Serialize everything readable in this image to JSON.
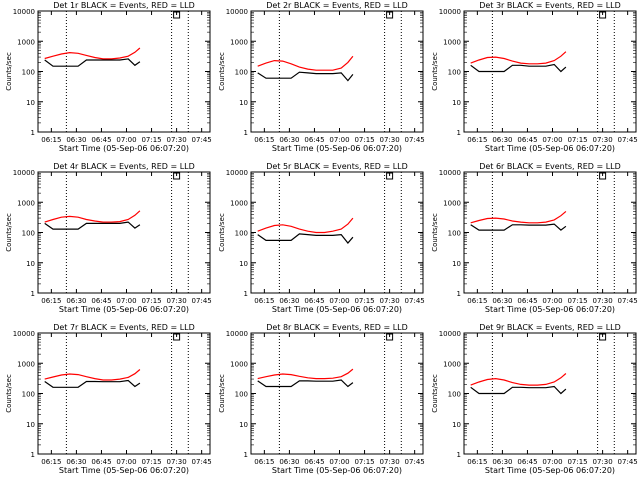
{
  "shared": {
    "xlabel": "Start Time (05-Sep-06 06:07:20)",
    "ylabel": "Counts/sec",
    "x_tick_labels": [
      "06:15",
      "06:30",
      "06:45",
      "07:00",
      "07:15",
      "07:30",
      "07:45"
    ],
    "y_tick_labels": [
      "1",
      "10",
      "100",
      "1000",
      "10000"
    ],
    "colors": {
      "events": "#000000",
      "lld": "#ff0000",
      "axes": "#000000"
    }
  },
  "chart_data": [
    {
      "type": "line",
      "title": "Det 1r BLACK = Events, RED = LLD",
      "x": [
        "06:11",
        "06:16",
        "06:21",
        "06:26",
        "06:31",
        "06:36",
        "06:41",
        "06:46",
        "06:51",
        "06:56",
        "07:01",
        "07:05",
        "07:08"
      ],
      "series": [
        {
          "values": [
            270,
            320,
            380,
            420,
            400,
            340,
            290,
            260,
            260,
            280,
            320,
            430,
            600
          ]
        },
        {
          "values": [
            240,
            150,
            150,
            150,
            150,
            240,
            240,
            240,
            240,
            240,
            260,
            160,
            210
          ]
        }
      ],
      "ylim": [
        1,
        10000
      ],
      "yscale": "log",
      "vlines": [
        "06:24",
        "07:27",
        "07:37"
      ],
      "marker_x": "07:30",
      "xlabel": "Start Time (05-Sep-06 06:07:20)",
      "ylabel": "Counts/sec"
    },
    {
      "type": "line",
      "title": "Det 2r BLACK = Events, RED = LLD",
      "x": [
        "06:11",
        "06:16",
        "06:21",
        "06:26",
        "06:31",
        "06:36",
        "06:41",
        "06:46",
        "06:51",
        "06:56",
        "07:01",
        "07:05",
        "07:08"
      ],
      "series": [
        {
          "values": [
            150,
            190,
            230,
            220,
            180,
            140,
            120,
            110,
            110,
            110,
            130,
            200,
            320
          ]
        },
        {
          "values": [
            90,
            60,
            60,
            60,
            60,
            95,
            90,
            85,
            85,
            85,
            90,
            50,
            80
          ]
        }
      ],
      "ylim": [
        1,
        10000
      ],
      "yscale": "log",
      "vlines": [
        "06:24",
        "07:27",
        "07:37"
      ],
      "marker_x": "07:30",
      "xlabel": "Start Time (05-Sep-06 06:07:20)",
      "ylabel": "Counts/sec"
    },
    {
      "type": "line",
      "title": "Det 3r BLACK = Events, RED = LLD",
      "x": [
        "06:11",
        "06:16",
        "06:21",
        "06:26",
        "06:31",
        "06:36",
        "06:41",
        "06:46",
        "06:51",
        "06:56",
        "07:01",
        "07:05",
        "07:08"
      ],
      "series": [
        {
          "values": [
            190,
            240,
            290,
            300,
            270,
            220,
            190,
            180,
            180,
            190,
            230,
            320,
            450
          ]
        },
        {
          "values": [
            160,
            100,
            100,
            100,
            100,
            160,
            160,
            150,
            150,
            150,
            170,
            100,
            140
          ]
        }
      ],
      "ylim": [
        1,
        10000
      ],
      "yscale": "log",
      "vlines": [
        "06:24",
        "07:27",
        "07:37"
      ],
      "marker_x": "07:30",
      "xlabel": "Start Time (05-Sep-06 06:07:20)",
      "ylabel": "Counts/sec"
    },
    {
      "type": "line",
      "title": "Det 4r BLACK = Events, RED = LLD",
      "x": [
        "06:11",
        "06:16",
        "06:21",
        "06:26",
        "06:31",
        "06:36",
        "06:41",
        "06:46",
        "06:51",
        "06:56",
        "07:01",
        "07:05",
        "07:08"
      ],
      "series": [
        {
          "values": [
            220,
            270,
            320,
            340,
            320,
            270,
            240,
            220,
            220,
            230,
            270,
            370,
            520
          ]
        },
        {
          "values": [
            200,
            130,
            130,
            130,
            130,
            200,
            200,
            200,
            200,
            200,
            220,
            140,
            180
          ]
        }
      ],
      "ylim": [
        1,
        10000
      ],
      "yscale": "log",
      "vlines": [
        "06:24",
        "07:27",
        "07:37"
      ],
      "marker_x": "07:30",
      "xlabel": "Start Time (05-Sep-06 06:07:20)",
      "ylabel": "Counts/sec"
    },
    {
      "type": "line",
      "title": "Det 5r BLACK = Events, RED = LLD",
      "x": [
        "06:11",
        "06:16",
        "06:21",
        "06:26",
        "06:31",
        "06:36",
        "06:41",
        "06:46",
        "06:51",
        "06:56",
        "07:01",
        "07:05",
        "07:08"
      ],
      "series": [
        {
          "values": [
            110,
            140,
            170,
            180,
            160,
            130,
            110,
            100,
            100,
            110,
            130,
            190,
            300
          ]
        },
        {
          "values": [
            85,
            55,
            55,
            55,
            55,
            90,
            85,
            80,
            80,
            80,
            85,
            45,
            70
          ]
        }
      ],
      "ylim": [
        1,
        10000
      ],
      "yscale": "log",
      "vlines": [
        "06:24",
        "07:27",
        "07:37"
      ],
      "marker_x": "07:30",
      "xlabel": "Start Time (05-Sep-06 06:07:20)",
      "ylabel": "Counts/sec"
    },
    {
      "type": "line",
      "title": "Det 6r BLACK = Events, RED = LLD",
      "x": [
        "06:11",
        "06:16",
        "06:21",
        "06:26",
        "06:31",
        "06:36",
        "06:41",
        "06:46",
        "06:51",
        "06:56",
        "07:01",
        "07:05",
        "07:08"
      ],
      "series": [
        {
          "values": [
            210,
            250,
            290,
            300,
            280,
            240,
            220,
            210,
            210,
            220,
            260,
            360,
            500
          ]
        },
        {
          "values": [
            180,
            120,
            120,
            120,
            120,
            180,
            180,
            175,
            175,
            175,
            190,
            120,
            160
          ]
        }
      ],
      "ylim": [
        1,
        10000
      ],
      "yscale": "log",
      "vlines": [
        "06:24",
        "07:27",
        "07:37"
      ],
      "marker_x": "07:30",
      "xlabel": "Start Time (05-Sep-06 06:07:20)",
      "ylabel": "Counts/sec"
    },
    {
      "type": "line",
      "title": "Det 7r BLACK = Events, RED = LLD",
      "x": [
        "06:11",
        "06:16",
        "06:21",
        "06:26",
        "06:31",
        "06:36",
        "06:41",
        "06:46",
        "06:51",
        "06:56",
        "07:01",
        "07:05",
        "07:08"
      ],
      "series": [
        {
          "values": [
            300,
            350,
            410,
            440,
            420,
            360,
            310,
            280,
            280,
            300,
            340,
            450,
            620
          ]
        },
        {
          "values": [
            250,
            160,
            160,
            160,
            160,
            250,
            250,
            245,
            245,
            245,
            270,
            170,
            220
          ]
        }
      ],
      "ylim": [
        1,
        10000
      ],
      "yscale": "log",
      "vlines": [
        "06:24",
        "07:27",
        "07:37"
      ],
      "marker_x": "07:30",
      "xlabel": "Start Time (05-Sep-06 06:07:20)",
      "ylabel": "Counts/sec"
    },
    {
      "type": "line",
      "title": "Det 8r BLACK = Events, RED = LLD",
      "x": [
        "06:11",
        "06:16",
        "06:21",
        "06:26",
        "06:31",
        "06:36",
        "06:41",
        "06:46",
        "06:51",
        "06:56",
        "07:01",
        "07:05",
        "07:08"
      ],
      "series": [
        {
          "values": [
            310,
            360,
            410,
            440,
            420,
            370,
            330,
            310,
            310,
            320,
            360,
            470,
            640
          ]
        },
        {
          "values": [
            260,
            170,
            170,
            170,
            170,
            260,
            260,
            255,
            255,
            255,
            280,
            170,
            230
          ]
        }
      ],
      "ylim": [
        1,
        10000
      ],
      "yscale": "log",
      "vlines": [
        "06:24",
        "07:27",
        "07:37"
      ],
      "marker_x": "07:30",
      "xlabel": "Start Time (05-Sep-06 06:07:20)",
      "ylabel": "Counts/sec"
    },
    {
      "type": "line",
      "title": "Det 9r BLACK = Events, RED = LLD",
      "x": [
        "06:11",
        "06:16",
        "06:21",
        "06:26",
        "06:31",
        "06:36",
        "06:41",
        "06:46",
        "06:51",
        "06:56",
        "07:01",
        "07:05",
        "07:08"
      ],
      "series": [
        {
          "values": [
            190,
            240,
            290,
            310,
            280,
            230,
            200,
            190,
            190,
            200,
            240,
            330,
            460
          ]
        },
        {
          "values": [
            160,
            100,
            100,
            100,
            100,
            160,
            160,
            155,
            155,
            155,
            170,
            100,
            140
          ]
        }
      ],
      "ylim": [
        1,
        10000
      ],
      "yscale": "log",
      "vlines": [
        "06:24",
        "07:27",
        "07:37"
      ],
      "marker_x": "07:30",
      "xlabel": "Start Time (05-Sep-06 06:07:20)",
      "ylabel": "Counts/sec"
    }
  ]
}
